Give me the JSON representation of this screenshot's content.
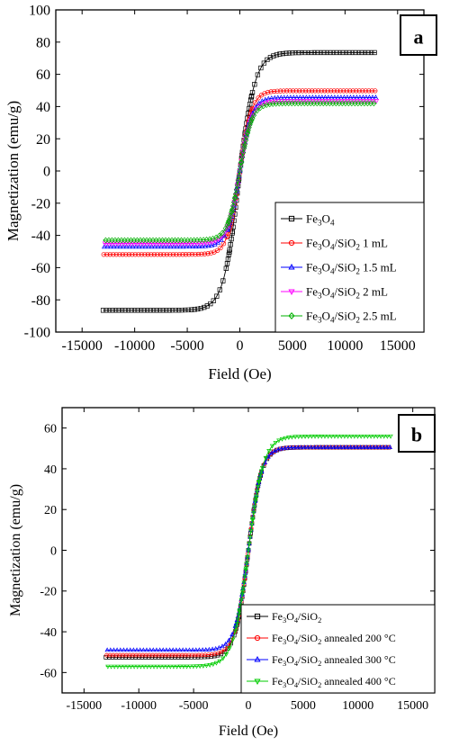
{
  "chart_data": [
    {
      "type": "line",
      "panel_label": "a",
      "xlabel": "Field (Oe)",
      "ylabel": "Magnetization (emu/g)",
      "xlim": [
        -17500,
        17500
      ],
      "ylim": [
        -100,
        100
      ],
      "xticks": [
        -15000,
        -10000,
        -5000,
        0,
        5000,
        10000,
        15000
      ],
      "yticks": [
        -100,
        -80,
        -60,
        -40,
        -20,
        0,
        20,
        40,
        60,
        80,
        100
      ],
      "grid": false,
      "legend_position": "bottom-right",
      "series": [
        {
          "name": "Fe3O4",
          "label_parts": [
            [
              "Fe",
              ""
            ],
            [
              "3",
              "sub"
            ],
            [
              "O",
              ""
            ],
            [
              "4",
              "sub"
            ]
          ],
          "color": "#000000",
          "marker": "square",
          "ms_pos": 73.5,
          "ms_neg": -86.5,
          "h0": 1500
        },
        {
          "name": "Fe3O4/SiO2 1 mL",
          "label_parts": [
            [
              "Fe",
              ""
            ],
            [
              "3",
              "sub"
            ],
            [
              "O",
              ""
            ],
            [
              "4",
              "sub"
            ],
            [
              "/SiO",
              ""
            ],
            [
              "2",
              "sub"
            ],
            [
              " 1 mL",
              ""
            ]
          ],
          "color": "#ff0000",
          "marker": "circle",
          "ms_pos": 49.8,
          "ms_neg": -51.8,
          "h0": 1150
        },
        {
          "name": "Fe3O4/SiO2 1.5 mL",
          "label_parts": [
            [
              "Fe",
              ""
            ],
            [
              "3",
              "sub"
            ],
            [
              "O",
              ""
            ],
            [
              "4",
              "sub"
            ],
            [
              "/SiO",
              ""
            ],
            [
              "2",
              "sub"
            ],
            [
              " 1.5 mL",
              ""
            ]
          ],
          "color": "#0000ff",
          "marker": "triangle-up",
          "ms_pos": 45.5,
          "ms_neg": -47.0,
          "h0": 1150
        },
        {
          "name": "Fe3O4/SiO2 2 mL",
          "label_parts": [
            [
              "Fe",
              ""
            ],
            [
              "3",
              "sub"
            ],
            [
              "O",
              ""
            ],
            [
              "4",
              "sub"
            ],
            [
              "/SiO",
              ""
            ],
            [
              "2",
              "sub"
            ],
            [
              " 2 mL",
              ""
            ]
          ],
          "color": "#ff00ff",
          "marker": "triangle-down",
          "ms_pos": 43.5,
          "ms_neg": -45.0,
          "h0": 1150
        },
        {
          "name": "Fe3O4/SiO2 2.5 mL",
          "label_parts": [
            [
              "Fe",
              ""
            ],
            [
              "3",
              "sub"
            ],
            [
              "O",
              ""
            ],
            [
              "4",
              "sub"
            ],
            [
              "/SiO",
              ""
            ],
            [
              "2",
              "sub"
            ],
            [
              " 2.5 mL",
              ""
            ]
          ],
          "color": "#00b000",
          "marker": "diamond",
          "ms_pos": 42.0,
          "ms_neg": -43.0,
          "h0": 1150
        }
      ]
    },
    {
      "type": "line",
      "panel_label": "b",
      "xlabel": "Field (Oe)",
      "ylabel": "Magnetization (emu/g)",
      "xlim": [
        -17000,
        17000
      ],
      "ylim": [
        -70,
        70
      ],
      "xticks": [
        -15000,
        -10000,
        -5000,
        0,
        5000,
        10000,
        15000
      ],
      "yticks": [
        -60,
        -40,
        -20,
        0,
        20,
        40,
        60
      ],
      "grid": false,
      "legend_position": "bottom-right",
      "series": [
        {
          "name": "Fe3O4/SiO2",
          "label_parts": [
            [
              "Fe",
              ""
            ],
            [
              "3",
              "sub"
            ],
            [
              "O",
              ""
            ],
            [
              "4",
              "sub"
            ],
            [
              "/SiO",
              ""
            ],
            [
              "2",
              "sub"
            ]
          ],
          "color": "#000000",
          "marker": "square",
          "ms_pos": 50.5,
          "ms_neg": -52.5,
          "h0": 1200
        },
        {
          "name": "Fe3O4/SiO2 annealed 200 °C",
          "label_parts": [
            [
              "Fe",
              ""
            ],
            [
              "3",
              "sub"
            ],
            [
              "O",
              ""
            ],
            [
              "4",
              "sub"
            ],
            [
              "/SiO",
              ""
            ],
            [
              "2",
              "sub"
            ],
            [
              " annealed 200 °C",
              ""
            ]
          ],
          "color": "#ff0000",
          "marker": "circle",
          "ms_pos": 50.5,
          "ms_neg": -51.5,
          "h0": 1200
        },
        {
          "name": "Fe3O4/SiO2 annealed 300 °C",
          "label_parts": [
            [
              "Fe",
              ""
            ],
            [
              "3",
              "sub"
            ],
            [
              "O",
              ""
            ],
            [
              "4",
              "sub"
            ],
            [
              "/SiO",
              ""
            ],
            [
              "2",
              "sub"
            ],
            [
              " annealed 300 °C",
              ""
            ]
          ],
          "color": "#0000ff",
          "marker": "triangle-up",
          "ms_pos": 50.5,
          "ms_neg": -49.0,
          "h0": 1200
        },
        {
          "name": "Fe3O4/SiO2 annealed 400 °C",
          "label_parts": [
            [
              "Fe",
              ""
            ],
            [
              "3",
              "sub"
            ],
            [
              "O",
              ""
            ],
            [
              "4",
              "sub"
            ],
            [
              "/SiO",
              ""
            ],
            [
              "2",
              "sub"
            ],
            [
              " annealed 400 °C",
              ""
            ]
          ],
          "color": "#00cc00",
          "marker": "triangle-down",
          "ms_pos": 56.0,
          "ms_neg": -57.0,
          "h0": 1400
        }
      ]
    }
  ]
}
